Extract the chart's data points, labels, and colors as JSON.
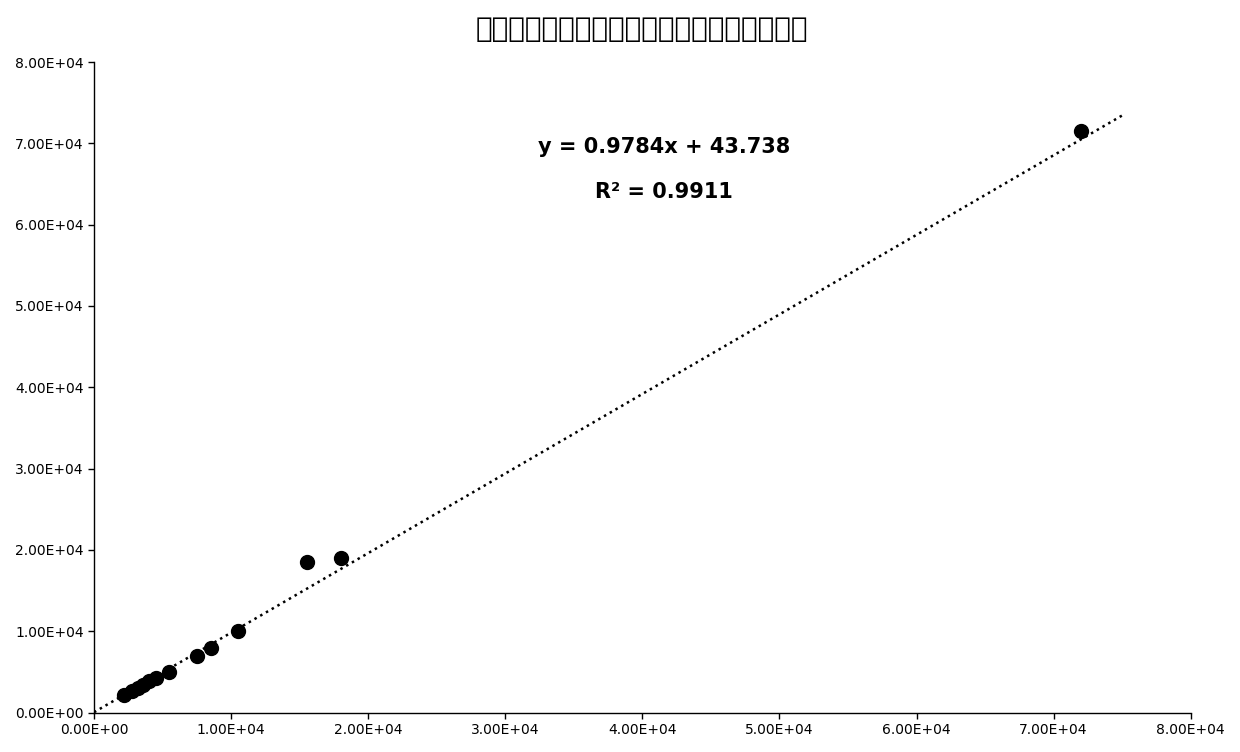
{
  "title": "血清、血浆样本前处理后质谱检测一致性分析",
  "scatter_x": [
    2200,
    2800,
    3200,
    3600,
    4000,
    4500,
    5500,
    7500,
    8500,
    15500,
    18000,
    10500,
    72000
  ],
  "scatter_y": [
    2200,
    2700,
    3000,
    3400,
    3900,
    4200,
    5000,
    7000,
    8000,
    18500,
    19000,
    10000,
    71500
  ],
  "slope": 0.9784,
  "intercept": 43.738,
  "r2": 0.9911,
  "xmin": 0,
  "xmax": 80000,
  "ymin": 0,
  "ymax": 80000,
  "xticks": [
    0,
    10000,
    20000,
    30000,
    40000,
    50000,
    60000,
    70000,
    80000
  ],
  "yticks": [
    0,
    10000,
    20000,
    30000,
    40000,
    50000,
    60000,
    70000,
    80000
  ],
  "equation_text": "y = 0.9784x + 43.738",
  "r2_text": "R² = 0.9911",
  "dot_color": "#000000",
  "line_color": "#000000",
  "bg_color": "#ffffff",
  "title_fontsize": 20,
  "annotation_fontsize": 15,
  "tick_fontsize": 10,
  "marker_size": 10,
  "line_width": 1.8,
  "trendline_x_start": 0,
  "trendline_x_end": 75000
}
